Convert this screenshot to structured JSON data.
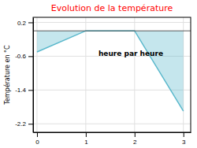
{
  "chart_data": {
    "type": "area",
    "title": "Evolution de la température",
    "ylabel": "Température en °C",
    "annotations": [
      "heure par heure"
    ],
    "x": [
      0,
      1,
      2,
      3
    ],
    "values": [
      -0.5,
      0.0,
      0.0,
      -1.9
    ],
    "color": "#5ab8cc",
    "title_color": "#ff0000",
    "xlim": [
      -0.08,
      3.15
    ],
    "ylim": [
      -2.4,
      0.32
    ],
    "xticks": [
      0,
      1,
      2,
      3
    ],
    "yticks": [
      0.2,
      -0.6,
      -1.4,
      -2.2
    ],
    "grid": true
  }
}
